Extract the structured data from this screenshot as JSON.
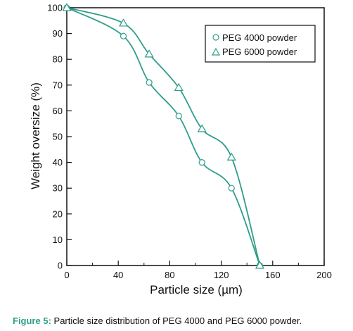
{
  "chart_data": {
    "type": "line",
    "xlabel": "Particle size (µm)",
    "ylabel": "Weight oversize (%)",
    "xlim": [
      0,
      200
    ],
    "ylim": [
      0,
      100
    ],
    "xticks": [
      0,
      40,
      80,
      120,
      160,
      200
    ],
    "yticks": [
      0,
      10,
      20,
      30,
      40,
      50,
      60,
      70,
      80,
      90,
      100
    ],
    "grid": false,
    "legend_position": "top-right",
    "series": [
      {
        "name": "PEG 4000 powder",
        "marker": "circle",
        "x": [
          0,
          44,
          64,
          87,
          105,
          128,
          150
        ],
        "y": [
          100,
          89,
          71,
          58,
          40,
          30,
          0
        ]
      },
      {
        "name": "PEG 6000 powder",
        "marker": "triangle",
        "x": [
          0,
          44,
          64,
          87,
          105,
          128,
          150
        ],
        "y": [
          100,
          94,
          82,
          69,
          53,
          42,
          0
        ]
      }
    ]
  },
  "caption": {
    "label": "Figure 5:",
    "text": " Particle size distribution of PEG 4000 and PEG 6000 powder."
  },
  "colors": {
    "line": "#2e9e8a",
    "marker": "#2e9e8a",
    "caption_label": "#2e9e8a",
    "axis": "#111111"
  }
}
